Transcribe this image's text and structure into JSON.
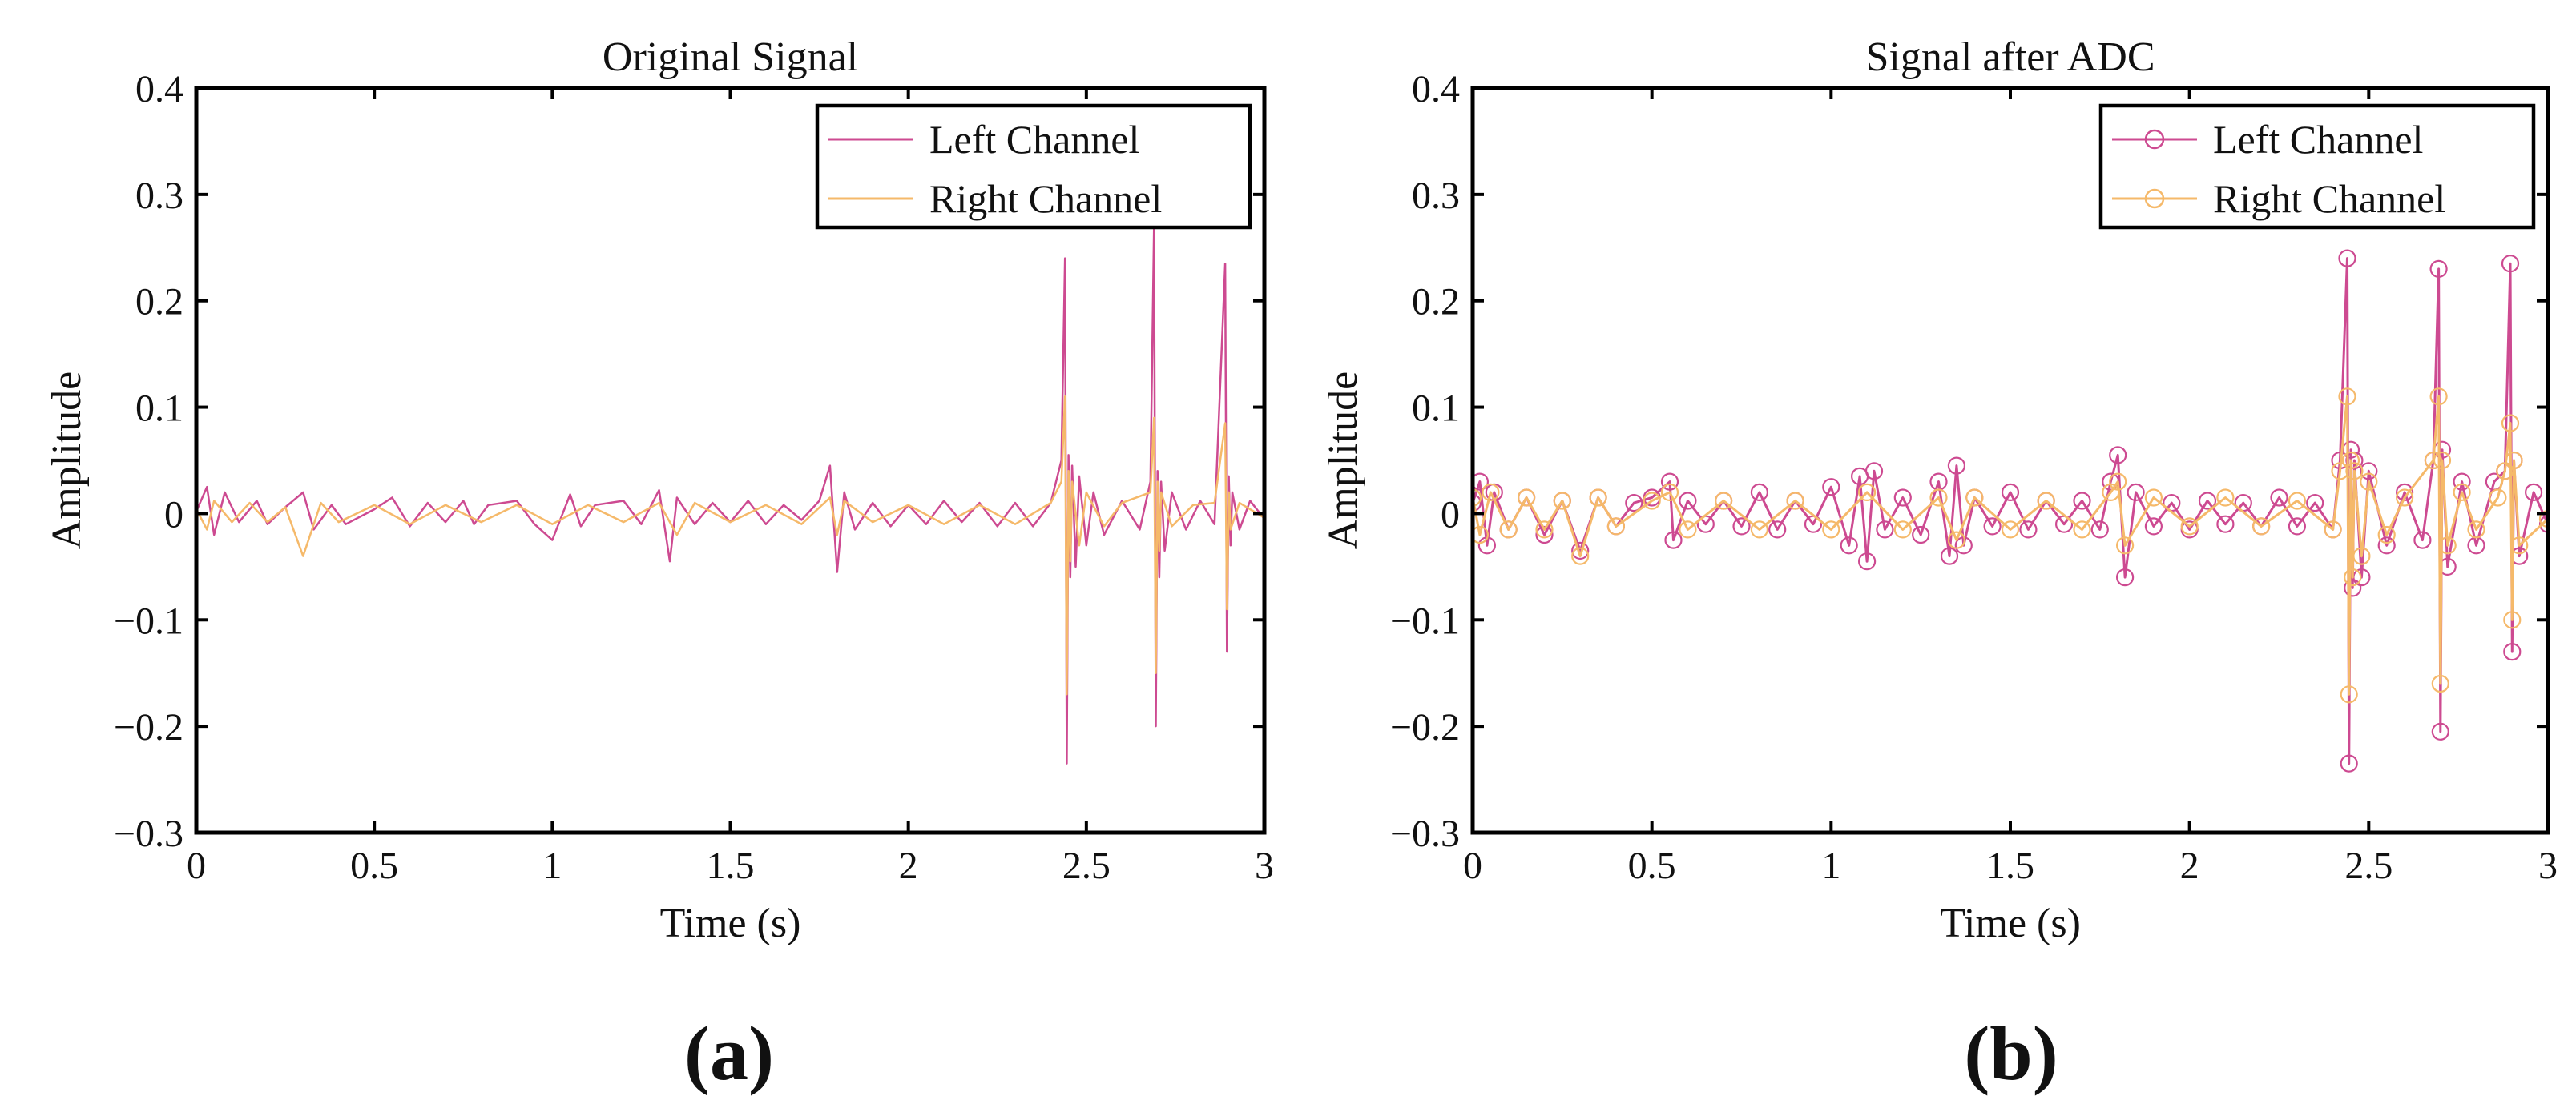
{
  "colors": {
    "left": "#cd4a91",
    "right": "#f5b96a",
    "axis": "#000000",
    "background": "#ffffff"
  },
  "panels": [
    {
      "letter": "(a)",
      "legend": [
        "Left Channel",
        "Right Channel"
      ]
    },
    {
      "letter": "(b)",
      "legend": [
        "Left Channel",
        "Right Channel"
      ]
    }
  ],
  "chart_data": [
    {
      "type": "line",
      "title": "Original Signal",
      "xlabel": "Time  (s)",
      "ylabel": "Amplitude",
      "xlim": [
        0,
        3
      ],
      "ylim": [
        -0.3,
        0.4
      ],
      "xticks": [
        0,
        0.5,
        1,
        1.5,
        2,
        2.5,
        3
      ],
      "xtick_labels": [
        "0",
        "0.5",
        "1",
        "1.5",
        "2",
        "2.5",
        "3"
      ],
      "yticks": [
        -0.3,
        -0.2,
        -0.1,
        0,
        0.1,
        0.2,
        0.3,
        0.4
      ],
      "ytick_labels": [
        "−0.3",
        "−0.2",
        "−0.1",
        "0",
        "0.1",
        "0.2",
        "0.3",
        "0.4"
      ],
      "grid": false,
      "legend_position": "top-right",
      "marker": "none",
      "series": [
        {
          "name": "Left Channel",
          "color_key": "left",
          "x": [
            0.0,
            0.03,
            0.05,
            0.08,
            0.12,
            0.17,
            0.2,
            0.25,
            0.3,
            0.33,
            0.38,
            0.42,
            0.5,
            0.55,
            0.6,
            0.65,
            0.7,
            0.75,
            0.78,
            0.82,
            0.9,
            0.95,
            1.0,
            1.05,
            1.08,
            1.12,
            1.2,
            1.25,
            1.3,
            1.33,
            1.35,
            1.4,
            1.45,
            1.5,
            1.55,
            1.6,
            1.65,
            1.7,
            1.75,
            1.78,
            1.8,
            1.82,
            1.85,
            1.9,
            1.95,
            2.0,
            2.05,
            2.1,
            2.15,
            2.2,
            2.25,
            2.3,
            2.35,
            2.4,
            2.43,
            2.44,
            2.445,
            2.45,
            2.455,
            2.46,
            2.47,
            2.48,
            2.5,
            2.52,
            2.55,
            2.6,
            2.65,
            2.68,
            2.69,
            2.695,
            2.7,
            2.705,
            2.71,
            2.72,
            2.74,
            2.78,
            2.82,
            2.86,
            2.89,
            2.895,
            2.9,
            2.905,
            2.91,
            2.93,
            2.96,
            3.0
          ],
          "y": [
            0.002,
            0.025,
            -0.02,
            0.02,
            -0.008,
            0.012,
            -0.01,
            0.006,
            0.02,
            -0.015,
            0.008,
            -0.01,
            0.004,
            0.015,
            -0.012,
            0.01,
            -0.008,
            0.012,
            -0.01,
            0.008,
            0.012,
            -0.01,
            -0.025,
            0.018,
            -0.012,
            0.008,
            0.012,
            -0.01,
            0.022,
            -0.045,
            0.015,
            -0.01,
            0.01,
            -0.008,
            0.012,
            -0.01,
            0.008,
            -0.006,
            0.012,
            0.045,
            -0.055,
            0.02,
            -0.015,
            0.01,
            -0.012,
            0.008,
            -0.01,
            0.012,
            -0.008,
            0.01,
            -0.012,
            0.01,
            -0.012,
            0.01,
            0.05,
            0.24,
            -0.235,
            0.055,
            -0.06,
            0.045,
            -0.05,
            0.035,
            -0.03,
            0.02,
            -0.02,
            0.012,
            -0.015,
            0.03,
            0.27,
            -0.2,
            0.04,
            -0.06,
            0.03,
            -0.035,
            0.02,
            -0.015,
            0.012,
            -0.01,
            0.235,
            -0.13,
            0.035,
            -0.03,
            0.02,
            -0.015,
            0.012,
            -0.005
          ]
        },
        {
          "name": "Right Channel",
          "color_key": "right",
          "x": [
            0.0,
            0.03,
            0.05,
            0.1,
            0.15,
            0.2,
            0.25,
            0.3,
            0.35,
            0.4,
            0.5,
            0.6,
            0.7,
            0.8,
            0.9,
            1.0,
            1.1,
            1.2,
            1.3,
            1.35,
            1.4,
            1.5,
            1.6,
            1.7,
            1.78,
            1.8,
            1.82,
            1.9,
            2.0,
            2.1,
            2.2,
            2.3,
            2.4,
            2.43,
            2.44,
            2.445,
            2.45,
            2.455,
            2.46,
            2.48,
            2.5,
            2.55,
            2.6,
            2.68,
            2.69,
            2.695,
            2.7,
            2.705,
            2.71,
            2.74,
            2.8,
            2.86,
            2.89,
            2.895,
            2.9,
            2.905,
            2.93,
            3.0
          ],
          "y": [
            0.004,
            -0.015,
            0.012,
            -0.008,
            0.01,
            -0.008,
            0.006,
            -0.04,
            0.01,
            -0.008,
            0.008,
            -0.01,
            0.008,
            -0.008,
            0.008,
            -0.01,
            0.008,
            -0.008,
            0.01,
            -0.02,
            0.01,
            -0.008,
            0.008,
            -0.01,
            0.015,
            -0.02,
            0.012,
            -0.008,
            0.008,
            -0.01,
            0.008,
            -0.01,
            0.01,
            0.03,
            0.11,
            -0.17,
            0.04,
            -0.045,
            0.03,
            -0.03,
            0.02,
            -0.012,
            0.01,
            0.02,
            0.09,
            -0.15,
            0.03,
            -0.035,
            0.02,
            -0.012,
            0.008,
            0.01,
            0.085,
            -0.09,
            0.02,
            -0.015,
            0.01,
            -0.004
          ]
        }
      ]
    },
    {
      "type": "line",
      "title": "Signal after ADC",
      "xlabel": "Time  (s)",
      "ylabel": "Amplitude",
      "xlim": [
        0,
        3
      ],
      "ylim": [
        -0.3,
        0.4
      ],
      "xticks": [
        0,
        0.5,
        1,
        1.5,
        2,
        2.5,
        3
      ],
      "xtick_labels": [
        "0",
        "0.5",
        "1",
        "1.5",
        "2",
        "2.5",
        "3"
      ],
      "yticks": [
        -0.3,
        -0.2,
        -0.1,
        0,
        0.1,
        0.2,
        0.3,
        0.4
      ],
      "ytick_labels": [
        "−0.3",
        "−0.2",
        "−0.1",
        "0",
        "0.1",
        "0.2",
        "0.3",
        "0.4"
      ],
      "grid": false,
      "legend_position": "top-right",
      "marker": "circle",
      "series": [
        {
          "name": "Left Channel",
          "color_key": "left",
          "x": [
            0.0,
            0.02,
            0.04,
            0.06,
            0.1,
            0.15,
            0.2,
            0.25,
            0.3,
            0.35,
            0.4,
            0.45,
            0.5,
            0.55,
            0.56,
            0.6,
            0.65,
            0.7,
            0.75,
            0.8,
            0.85,
            0.9,
            0.95,
            1.0,
            1.05,
            1.08,
            1.1,
            1.12,
            1.15,
            1.2,
            1.25,
            1.3,
            1.33,
            1.35,
            1.37,
            1.4,
            1.45,
            1.5,
            1.55,
            1.6,
            1.65,
            1.7,
            1.75,
            1.78,
            1.8,
            1.82,
            1.85,
            1.9,
            1.95,
            2.0,
            2.05,
            2.1,
            2.15,
            2.2,
            2.25,
            2.3,
            2.35,
            2.4,
            2.42,
            2.44,
            2.445,
            2.45,
            2.455,
            2.46,
            2.48,
            2.5,
            2.55,
            2.6,
            2.65,
            2.68,
            2.695,
            2.7,
            2.705,
            2.72,
            2.76,
            2.8,
            2.85,
            2.88,
            2.895,
            2.9,
            2.905,
            2.92,
            2.96,
            3.0
          ],
          "y": [
            0.01,
            0.03,
            -0.03,
            0.02,
            -0.015,
            0.015,
            -0.02,
            0.012,
            -0.035,
            0.015,
            -0.012,
            0.01,
            0.015,
            0.03,
            -0.025,
            0.012,
            -0.01,
            0.012,
            -0.012,
            0.02,
            -0.015,
            0.012,
            -0.01,
            0.025,
            -0.03,
            0.035,
            -0.045,
            0.04,
            -0.015,
            0.015,
            -0.02,
            0.03,
            -0.04,
            0.045,
            -0.03,
            0.015,
            -0.012,
            0.02,
            -0.015,
            0.012,
            -0.01,
            0.012,
            -0.015,
            0.03,
            0.055,
            -0.06,
            0.02,
            -0.012,
            0.01,
            -0.015,
            0.012,
            -0.01,
            0.01,
            -0.012,
            0.015,
            -0.012,
            0.01,
            -0.015,
            0.05,
            0.24,
            -0.235,
            0.06,
            -0.07,
            0.05,
            -0.06,
            0.04,
            -0.03,
            0.02,
            -0.025,
            0.05,
            0.23,
            -0.205,
            0.06,
            -0.05,
            0.03,
            -0.03,
            0.03,
            0.04,
            0.235,
            -0.13,
            0.05,
            -0.04,
            0.02,
            -0.01
          ]
        },
        {
          "name": "Right Channel",
          "color_key": "right",
          "x": [
            0.0,
            0.02,
            0.05,
            0.1,
            0.15,
            0.2,
            0.25,
            0.3,
            0.35,
            0.4,
            0.5,
            0.55,
            0.6,
            0.7,
            0.8,
            0.9,
            1.0,
            1.1,
            1.2,
            1.3,
            1.35,
            1.4,
            1.5,
            1.6,
            1.7,
            1.78,
            1.8,
            1.82,
            1.9,
            2.0,
            2.1,
            2.2,
            2.3,
            2.4,
            2.42,
            2.44,
            2.445,
            2.45,
            2.455,
            2.46,
            2.48,
            2.5,
            2.55,
            2.6,
            2.68,
            2.695,
            2.7,
            2.705,
            2.72,
            2.76,
            2.8,
            2.86,
            2.88,
            2.895,
            2.9,
            2.905,
            2.92,
            3.0
          ],
          "y": [
            0.015,
            -0.02,
            0.02,
            -0.015,
            0.015,
            -0.015,
            0.012,
            -0.04,
            0.015,
            -0.012,
            0.012,
            0.02,
            -0.015,
            0.012,
            -0.015,
            0.012,
            -0.015,
            0.02,
            -0.015,
            0.015,
            -0.025,
            0.015,
            -0.015,
            0.012,
            -0.015,
            0.02,
            0.03,
            -0.03,
            0.015,
            -0.012,
            0.015,
            -0.012,
            0.012,
            -0.015,
            0.04,
            0.11,
            -0.17,
            0.05,
            -0.06,
            0.04,
            -0.04,
            0.03,
            -0.02,
            0.015,
            0.05,
            0.11,
            -0.16,
            0.05,
            -0.03,
            0.02,
            -0.015,
            0.015,
            0.04,
            0.085,
            -0.1,
            0.05,
            -0.03,
            -0.005
          ]
        }
      ]
    }
  ]
}
